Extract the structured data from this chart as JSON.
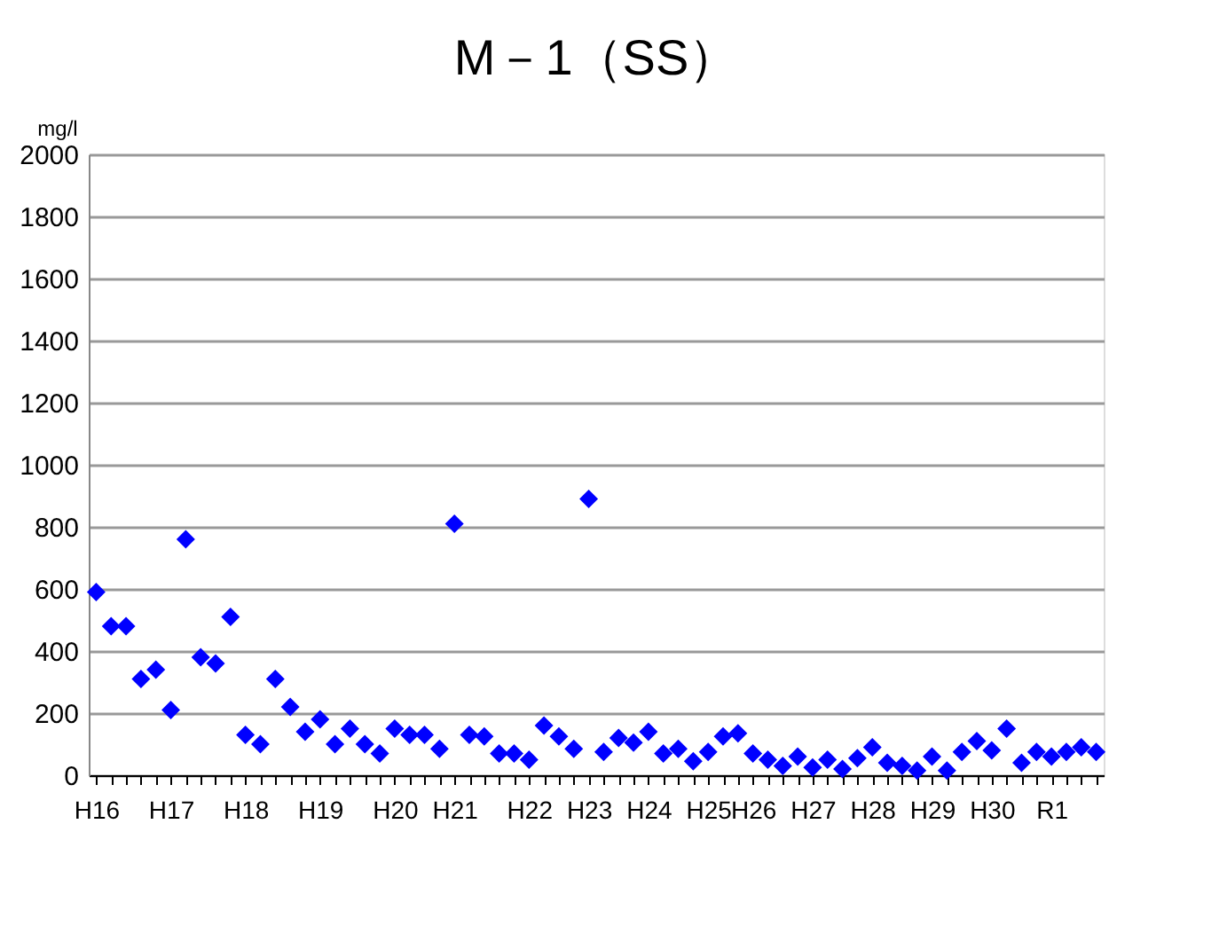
{
  "chart_data": {
    "type": "scatter",
    "title": "M－1（SS）",
    "ylabel": "mg/l",
    "categories": [
      "H16",
      null,
      null,
      null,
      null,
      "H17",
      null,
      null,
      null,
      null,
      "H18",
      null,
      null,
      null,
      null,
      "H19",
      null,
      null,
      null,
      null,
      "H20",
      null,
      null,
      null,
      "H21",
      null,
      null,
      null,
      null,
      "H22",
      null,
      null,
      null,
      "H23",
      null,
      null,
      null,
      "H24",
      null,
      null,
      null,
      "H25",
      null,
      null,
      "H26",
      null,
      null,
      null,
      "H27",
      null,
      null,
      null,
      "H28",
      null,
      null,
      null,
      "H29",
      null,
      null,
      null,
      "H30",
      null,
      null,
      null,
      "R1",
      null,
      null,
      null
    ],
    "series": [
      {
        "color": "#0000ff",
        "values": [
          590,
          480,
          480,
          310,
          340,
          210,
          760,
          380,
          360,
          510,
          130,
          100,
          310,
          220,
          140,
          180,
          100,
          150,
          100,
          70,
          150,
          130,
          130,
          85,
          810,
          130,
          125,
          70,
          70,
          50,
          160,
          125,
          85,
          890,
          75,
          120,
          105,
          140,
          70,
          85,
          45,
          75,
          125,
          135,
          70,
          50,
          30,
          60,
          25,
          50,
          20,
          55,
          90,
          40,
          30,
          15,
          60,
          15,
          75,
          110,
          80,
          150,
          40,
          75,
          60,
          75,
          90,
          75
        ]
      }
    ],
    "ylim": [
      0,
      2000
    ],
    "yticks": [
      0,
      200,
      400,
      600,
      800,
      1000,
      1200,
      1400,
      1600,
      1800,
      2000
    ],
    "grid": "y",
    "legend": false,
    "marker": "diamond"
  }
}
